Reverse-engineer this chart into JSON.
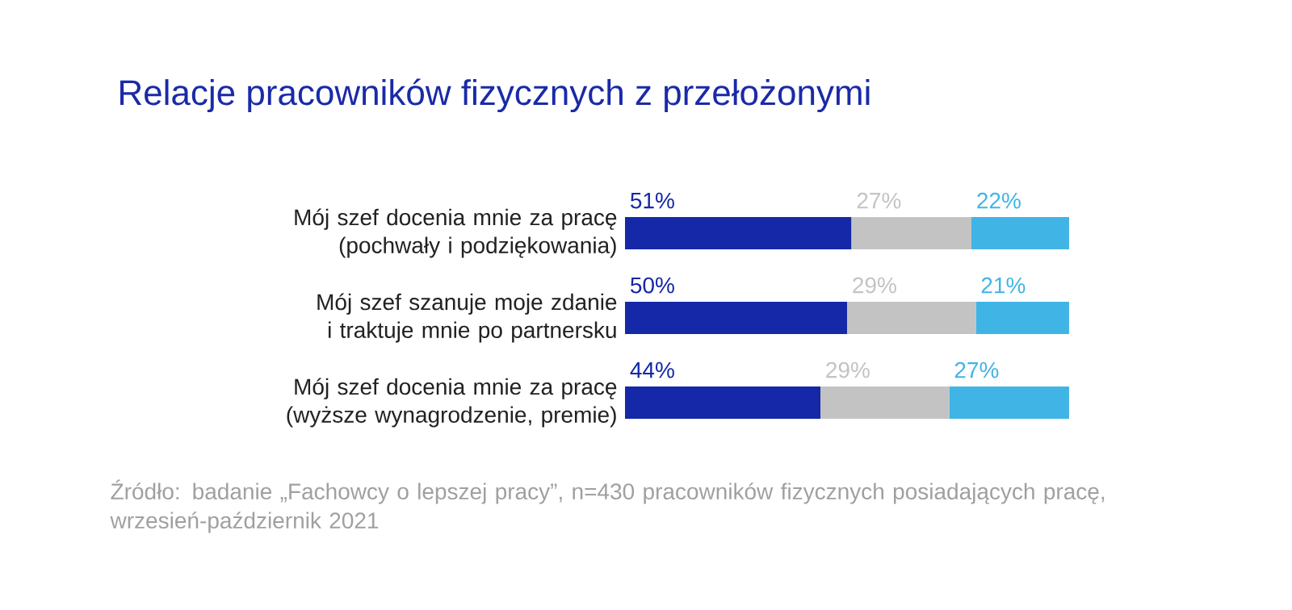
{
  "chart_data": {
    "type": "bar",
    "orientation": "horizontal",
    "stacked": true,
    "title": "Relacje pracowników fizycznych z przełożonymi",
    "categories": [
      "Mój szef docenia mnie za pracę (pochwały i podziękowania)",
      "Mój szef szanuje moje zdanie i traktuje mnie po partnersku",
      "Mój szef docenia mnie za pracę (wyższe wynagrodzenie, premie)"
    ],
    "series": [
      {
        "color": "#1428a8",
        "values": [
          51,
          50,
          44
        ],
        "value_labels": [
          "51%",
          "50%",
          "44%"
        ]
      },
      {
        "color": "#c3c3c3",
        "values": [
          27,
          29,
          29
        ],
        "value_labels": [
          "27%",
          "29%",
          "29%"
        ]
      },
      {
        "color": "#41b4e6",
        "values": [
          22,
          21,
          27
        ],
        "value_labels": [
          "22%",
          "21%",
          "27%"
        ]
      }
    ],
    "annotations": [
      "Źródło: badanie „Fachowcy o lepszej pracy”, n=430 pracowników fizycznych posiadających pracę, wrzesień-październik 2021"
    ]
  }
}
